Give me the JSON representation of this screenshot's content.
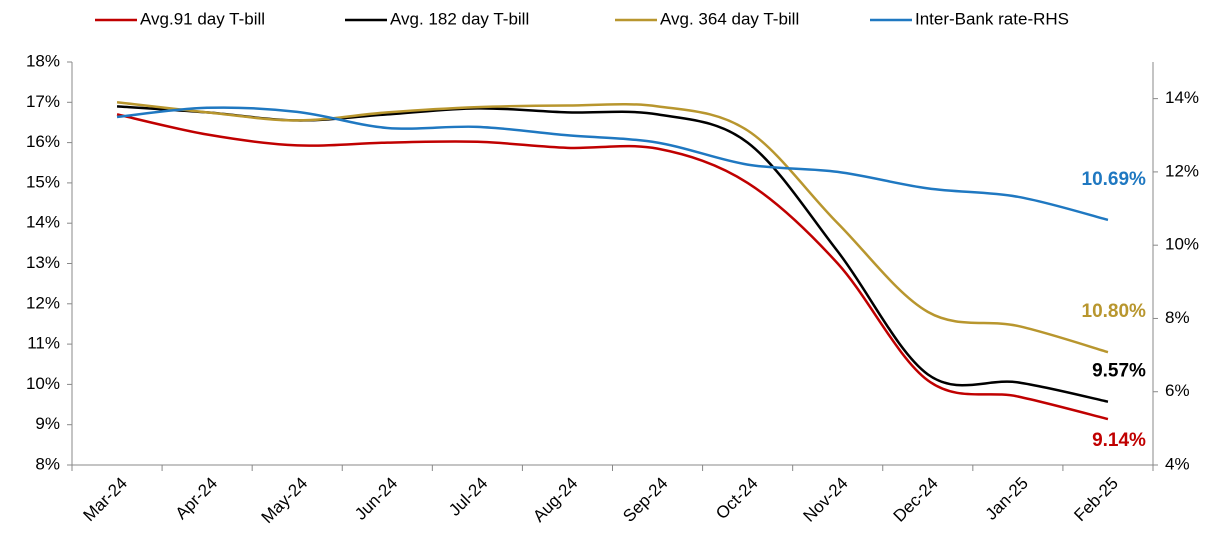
{
  "chart_data": {
    "type": "line",
    "categories": [
      "Mar-24",
      "Apr-24",
      "May-24",
      "Jun-24",
      "Jul-24",
      "Aug-24",
      "Sep-24",
      "Oct-24",
      "Nov-24",
      "Dec-24",
      "Jan-25",
      "Feb-25"
    ],
    "series": [
      {
        "name": "Avg.91 day T-bill",
        "color": "#c00000",
        "values": [
          16.7,
          16.2,
          15.93,
          16.0,
          16.02,
          15.87,
          15.85,
          15.0,
          13.0,
          10.1,
          9.7,
          9.14
        ],
        "value_labels": [
          null,
          null,
          null,
          null,
          null,
          null,
          null,
          null,
          null,
          null,
          null,
          "9.14%"
        ]
      },
      {
        "name": "Avg. 182 day T-bill",
        "color": "#000000",
        "values": [
          16.9,
          16.75,
          16.55,
          16.7,
          16.85,
          16.75,
          16.7,
          16.0,
          13.3,
          10.25,
          10.05,
          9.57
        ],
        "value_labels": [
          null,
          null,
          null,
          null,
          null,
          null,
          null,
          null,
          null,
          null,
          null,
          "9.57%"
        ]
      },
      {
        "name": "Avg. 364 day T-bill",
        "color": "#b8962e",
        "values": [
          17.0,
          16.75,
          16.55,
          16.75,
          16.88,
          16.92,
          16.9,
          16.3,
          14.0,
          11.8,
          11.45,
          10.8
        ],
        "value_labels": [
          null,
          null,
          null,
          null,
          null,
          null,
          null,
          null,
          null,
          null,
          null,
          "10.80%"
        ]
      },
      {
        "name": "Inter-Bank rate-RHS",
        "color": "#1f78c1",
        "axis": "y2",
        "values": [
          13.5,
          13.75,
          13.64,
          13.2,
          13.23,
          13.0,
          12.8,
          12.2,
          12.0,
          11.55,
          11.32,
          10.69
        ],
        "value_labels": [
          null,
          null,
          null,
          null,
          null,
          null,
          null,
          null,
          null,
          null,
          null,
          "10.69%"
        ]
      }
    ],
    "ylim": [
      8,
      18
    ],
    "yticks": [
      {
        "value": 8,
        "label": "8%"
      },
      {
        "value": 9,
        "label": "9%"
      },
      {
        "value": 10,
        "label": "10%"
      },
      {
        "value": 11,
        "label": "11%"
      },
      {
        "value": 12,
        "label": "12%"
      },
      {
        "value": 13,
        "label": "13%"
      },
      {
        "value": 14,
        "label": "14%"
      },
      {
        "value": 15,
        "label": "15%"
      },
      {
        "value": 16,
        "label": "16%"
      },
      {
        "value": 17,
        "label": "17%"
      },
      {
        "value": 18,
        "label": "18%"
      }
    ],
    "y2lim": [
      4,
      15
    ],
    "y2ticks": [
      {
        "value": 4,
        "label": "4%"
      },
      {
        "value": 6,
        "label": "6%"
      },
      {
        "value": 8,
        "label": "8%"
      },
      {
        "value": 10,
        "label": "10%"
      },
      {
        "value": 12,
        "label": "12%"
      },
      {
        "value": 14,
        "label": "14%"
      }
    ],
    "legend": "top",
    "grid": false
  }
}
